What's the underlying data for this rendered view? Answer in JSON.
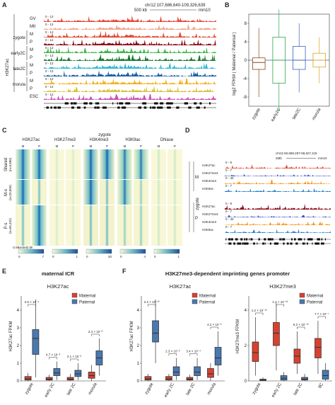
{
  "panels": [
    "A",
    "B",
    "C",
    "D",
    "E",
    "F"
  ],
  "panel_a": {
    "coords": "chr12:107,686,640-109,326,639",
    "scale": "500 kb",
    "genome": "mm10",
    "ylabel": "H3K27ac",
    "range": "0 - 12",
    "tracks": [
      {
        "label": "GV",
        "group": "",
        "color": "#e8412f"
      },
      {
        "label": "MII",
        "group": "",
        "color": "#f2a48a"
      },
      {
        "label": "M",
        "group": "zygote",
        "color": "#e24a33"
      },
      {
        "label": "P",
        "group": "zygote",
        "color": "#8b0e1b"
      },
      {
        "label": "M",
        "group": "early2C",
        "color": "#3db64a"
      },
      {
        "label": "P",
        "group": "early2C",
        "color": "#157a2e"
      },
      {
        "label": "M",
        "group": "late2C",
        "color": "#2fb8d0"
      },
      {
        "label": "P",
        "group": "late2C",
        "color": "#1b5fa8"
      },
      {
        "label": "M",
        "group": "morula",
        "color": "#f2b01c"
      },
      {
        "label": "P",
        "group": "morula",
        "color": "#d6c23a"
      },
      {
        "label": "ESC",
        "group": "",
        "color": "#c94fb6"
      }
    ],
    "groups": [
      "zygote",
      "early2C",
      "late2C",
      "morula"
    ]
  },
  "panel_b": {
    "ylabel": "log2 FPKM ( Maternal / Paternal )",
    "yticks": [
      "8",
      "4",
      "0",
      "-4",
      "-8"
    ],
    "chart_data": {
      "type": "box",
      "categories": [
        "zygote",
        "early2C",
        "late2C",
        "morula"
      ],
      "colors": [
        "#8b4513",
        "#2fa84f",
        "#3a63b8",
        "#e0a020"
      ],
      "boxes": [
        {
          "whisker_low": -8,
          "q1": -2,
          "median": -0.5,
          "q3": 0.5,
          "whisker_high": 7
        },
        {
          "whisker_low": -11,
          "q1": -5,
          "median": 0,
          "q3": 5,
          "whisker_high": 11
        },
        {
          "whisker_low": -7,
          "q1": -2,
          "median": 0,
          "q3": 3,
          "whisker_high": 8
        },
        {
          "whisker_low": -5,
          "q1": -1.5,
          "median": 0,
          "q3": 1.5,
          "whisker_high": 5
        }
      ],
      "ylim": [
        -10,
        10
      ]
    }
  },
  "panel_c": {
    "title": "zygote",
    "columns": [
      "H3K27ac",
      "H3K27me3",
      "H3K4me3",
      "H3K9ac",
      "DNase"
    ],
    "mp": [
      "M",
      "P"
    ],
    "rows": [
      {
        "label": "Shared",
        "n": "(n=9,886)"
      },
      {
        "label": "M-s",
        "n": "(n=20,856)"
      },
      {
        "label": "P-s",
        "n": "(n=50,432)"
      }
    ],
    "axis": [
      "-2.5k",
      "center",
      "2.5k"
    ],
    "scales": [
      [
        "0",
        "7"
      ],
      [
        "0",
        "1"
      ],
      [
        "0",
        "20"
      ],
      [
        "0",
        "4"
      ],
      [
        "0",
        "1"
      ]
    ]
  },
  "panel_d": {
    "coords": "chr11:60,688,287-68,827,119",
    "scale": "2Mb",
    "genome": "mm10",
    "group_label": "zygote",
    "tracks": [
      {
        "parent": "M",
        "label": "H3K27ac",
        "range": "0 - 9",
        "color": "#e24a33"
      },
      {
        "parent": "M",
        "label": "H3K27me3",
        "range": "0 - 7",
        "color": "#3a4fc4"
      },
      {
        "parent": "M",
        "label": "H3K4me3",
        "range": "0 - 40",
        "color": "#f39a1c"
      },
      {
        "parent": "M",
        "label": "H3K9ac",
        "range": "0 - 7",
        "color": "#1a7fc4"
      },
      {
        "parent": "P",
        "label": "H3K27ac",
        "range": "0 - 9",
        "color": "#8b0e1b"
      },
      {
        "parent": "P",
        "label": "H3K27me3",
        "range": "0 - 7",
        "color": "#3a4fc4"
      },
      {
        "parent": "P",
        "label": "H3K4me3",
        "range": "0 - 40",
        "color": "#f39a1c"
      },
      {
        "parent": "P",
        "label": "H3K9ac",
        "range": "0 - 7",
        "color": "#1a7fc4"
      }
    ]
  },
  "panel_e": {
    "title": "maternal ICR",
    "subtitle": "H3K27ac",
    "ylabel": "H3K27ac FPKM",
    "yticks": [
      "0",
      "1",
      "2",
      "3",
      "4"
    ],
    "legend": [
      {
        "name": "Maternal",
        "color": "#d9412f"
      },
      {
        "name": "Paternal",
        "color": "#4a78b0"
      }
    ],
    "chart_data": {
      "type": "box",
      "categories": [
        "zygote",
        "early 2C",
        "late 2C",
        "morula"
      ],
      "pvalues": [
        "2.6 × 10⁻⁴",
        "4.7 × 10⁻³",
        "2.1 × 10⁻³",
        "2.4 × 10⁻³"
      ],
      "series": [
        {
          "name": "Maternal",
          "boxes": [
            {
              "whisker_low": 0,
              "q1": 0.05,
              "median": 0.12,
              "q3": 0.25,
              "whisker_high": 0.45
            },
            {
              "whisker_low": 0,
              "q1": 0.05,
              "median": 0.1,
              "q3": 0.2,
              "whisker_high": 0.35
            },
            {
              "whisker_low": 0,
              "q1": 0.05,
              "median": 0.1,
              "q3": 0.2,
              "whisker_high": 0.4
            },
            {
              "whisker_low": 0,
              "q1": 0.15,
              "median": 0.3,
              "q3": 0.5,
              "whisker_high": 0.9
            }
          ]
        },
        {
          "name": "Paternal",
          "boxes": [
            {
              "whisker_low": 0.2,
              "q1": 1.5,
              "median": 2.4,
              "q3": 2.9,
              "whisker_high": 4.6
            },
            {
              "whisker_low": 0.05,
              "q1": 0.3,
              "median": 0.45,
              "q3": 0.7,
              "whisker_high": 1.1
            },
            {
              "whisker_low": 0.05,
              "q1": 0.25,
              "median": 0.4,
              "q3": 0.6,
              "whisker_high": 1.0
            },
            {
              "whisker_low": 0.3,
              "q1": 0.9,
              "median": 1.3,
              "q3": 1.7,
              "whisker_high": 2.4
            }
          ]
        }
      ],
      "ylim": [
        0,
        4.8
      ]
    }
  },
  "panel_f": {
    "title": "H3K27me3-dependent imprinting genes promoter",
    "left": {
      "subtitle": "H3K27ac",
      "ylabel": "H3K27ac FPKM",
      "yticks": [
        "0",
        "1",
        "2",
        "3",
        "4"
      ],
      "chart_data": {
        "type": "box",
        "categories": [
          "zygote",
          "early 2C",
          "late 2C",
          "morula"
        ],
        "pvalues": [
          "2.2 × 10⁻¹⁰",
          "2.3 × 10⁻³",
          "3.4 × 10⁻⁴",
          "4.2 × 10⁻³"
        ],
        "series": [
          {
            "name": "Maternal",
            "boxes": [
              {
                "whisker_low": 0,
                "q1": 0.05,
                "median": 0.12,
                "q3": 0.25,
                "whisker_high": 0.4
              },
              {
                "whisker_low": 0,
                "q1": 0.05,
                "median": 0.12,
                "q3": 0.25,
                "whisker_high": 0.4
              },
              {
                "whisker_low": 0,
                "q1": 0.05,
                "median": 0.1,
                "q3": 0.2,
                "whisker_high": 0.35
              },
              {
                "whisker_low": 0,
                "q1": 0.2,
                "median": 0.4,
                "q3": 0.7,
                "whisker_high": 1.0
              }
            ]
          },
          {
            "name": "Paternal",
            "boxes": [
              {
                "whisker_low": 1.0,
                "q1": 2.2,
                "median": 2.7,
                "q3": 3.4,
                "whisker_high": 4.6
              },
              {
                "whisker_low": 0.05,
                "q1": 0.3,
                "median": 0.5,
                "q3": 0.8,
                "whisker_high": 1.3
              },
              {
                "whisker_low": 0.05,
                "q1": 0.3,
                "median": 0.5,
                "q3": 0.8,
                "whisker_high": 1.3
              },
              {
                "whisker_low": 0.3,
                "q1": 0.9,
                "median": 1.3,
                "q3": 1.9,
                "whisker_high": 2.8
              }
            ]
          }
        ],
        "ylim": [
          0,
          4.8
        ]
      }
    },
    "right": {
      "subtitle": "H3K27me3",
      "ylabel": "H3K27me3 FPKM",
      "yticks": [
        "0",
        "2",
        "4"
      ],
      "legend": [
        {
          "name": "Maternal",
          "color": "#d9412f"
        },
        {
          "name": "Paternal",
          "color": "#4a78b0"
        }
      ],
      "chart_data": {
        "type": "box",
        "categories": [
          "zygote",
          "early 2C",
          "late 2C",
          "8C"
        ],
        "pvalues": [
          "1.2 × 10⁻¹⁰",
          "1.4 × 10⁻¹²",
          "5.2 × 10⁻¹⁰",
          "7.7 × 10⁻⁷"
        ],
        "series": [
          {
            "name": "Maternal",
            "boxes": [
              {
                "whisker_low": 0.3,
                "q1": 1.1,
                "median": 1.6,
                "q3": 2.2,
                "whisker_high": 3.6
              },
              {
                "whisker_low": 0.6,
                "q1": 2.0,
                "median": 2.7,
                "q3": 3.3,
                "whisker_high": 4.4
              },
              {
                "whisker_low": 0.4,
                "q1": 1.0,
                "median": 1.4,
                "q3": 1.8,
                "whisker_high": 2.8
              },
              {
                "whisker_low": 0.4,
                "q1": 1.3,
                "median": 1.9,
                "q3": 2.4,
                "whisker_high": 3.4
              }
            ]
          },
          {
            "name": "Paternal",
            "boxes": [
              {
                "whisker_low": 0,
                "q1": 0.02,
                "median": 0.05,
                "q3": 0.1,
                "whisker_high": 0.2
              },
              {
                "whisker_low": 0,
                "q1": 0.05,
                "median": 0.15,
                "q3": 0.3,
                "whisker_high": 0.5
              },
              {
                "whisker_low": 0,
                "q1": 0.05,
                "median": 0.1,
                "q3": 0.2,
                "whisker_high": 0.4
              },
              {
                "whisker_low": 0,
                "q1": 0.1,
                "median": 0.3,
                "q3": 0.6,
                "whisker_high": 1.0
              }
            ]
          }
        ],
        "ylim": [
          0,
          4.8
        ]
      }
    }
  }
}
